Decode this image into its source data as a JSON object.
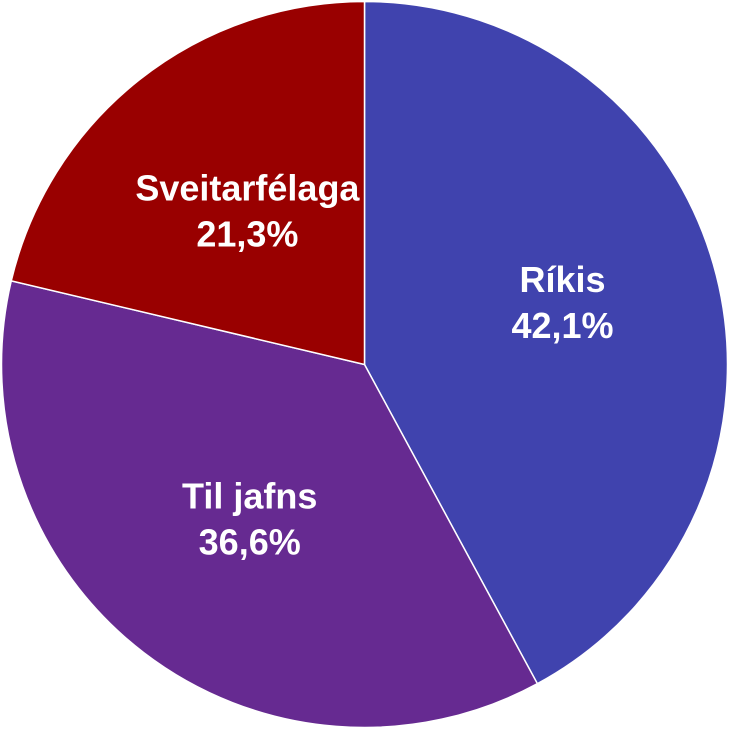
{
  "chart_data": {
    "type": "pie",
    "title": "",
    "start_angle_deg": 0,
    "direction": "clockwise",
    "slices": [
      {
        "name": "Ríkis",
        "value": 42.1,
        "label": "42,1%",
        "color": "#4043AE"
      },
      {
        "name": "Til jafns",
        "value": 36.6,
        "label": "36,6%",
        "color": "#662A91"
      },
      {
        "name": "Sveitarfélaga",
        "value": 21.3,
        "label": "21,3%",
        "color": "#990000"
      }
    ],
    "legend": "none",
    "slice_border_color": "#ffffff"
  }
}
